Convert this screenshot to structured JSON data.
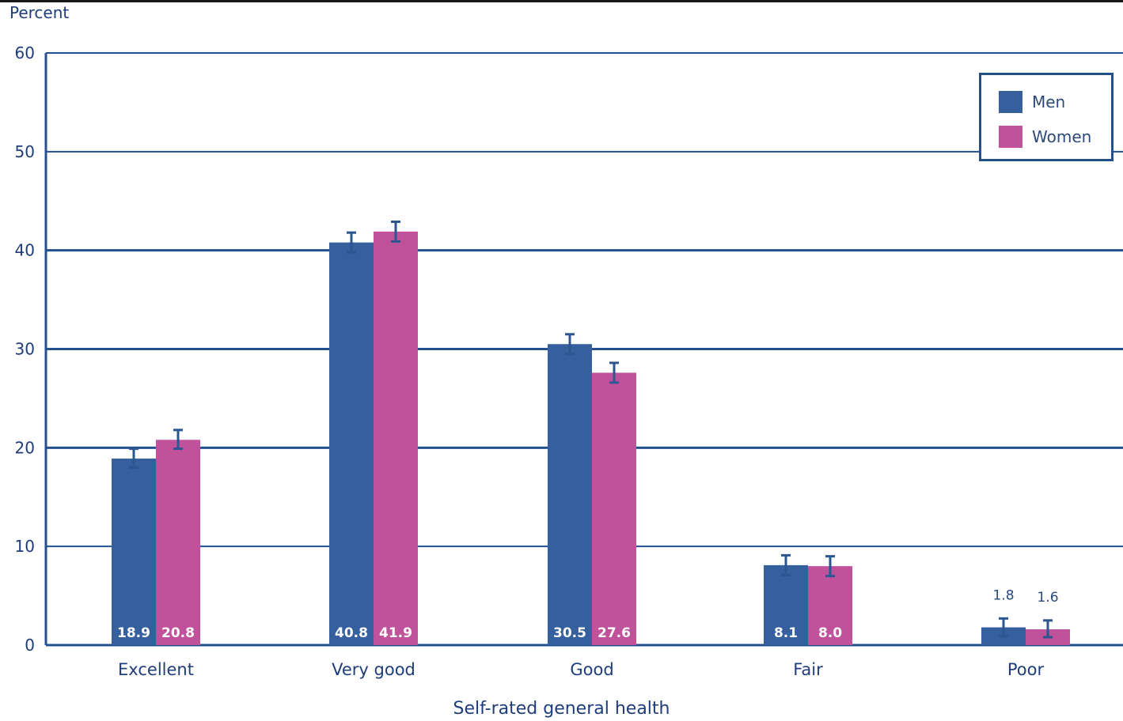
{
  "chart_data": {
    "type": "bar",
    "ylabel": "Percent",
    "xlabel": "Self-rated general health",
    "categories": [
      "Excellent",
      "Very good",
      "Good",
      "Fair",
      "Poor"
    ],
    "ylim": [
      0,
      60
    ],
    "yticks": [
      0,
      10,
      20,
      30,
      40,
      50,
      60
    ],
    "grid": true,
    "legend_position": "top-right",
    "series": [
      {
        "name": "Men",
        "color": "#365f9e",
        "values": [
          18.9,
          40.8,
          30.5,
          8.1,
          1.8
        ],
        "labels": [
          "18.9",
          "40.8",
          "30.5",
          "8.1",
          "1.8"
        ],
        "error_low": [
          18.0,
          39.8,
          29.5,
          7.1,
          0.9
        ],
        "error_high": [
          19.9,
          41.8,
          31.5,
          9.1,
          2.7
        ]
      },
      {
        "name": "Women",
        "color": "#c0529b",
        "values": [
          20.8,
          41.9,
          27.6,
          8.0,
          1.6
        ],
        "labels": [
          "20.8",
          "41.9",
          "27.6",
          "8.0",
          "1.6"
        ],
        "error_low": [
          19.9,
          40.9,
          26.6,
          7.0,
          0.8
        ],
        "error_high": [
          21.8,
          42.9,
          28.6,
          9.0,
          2.5
        ]
      }
    ]
  }
}
